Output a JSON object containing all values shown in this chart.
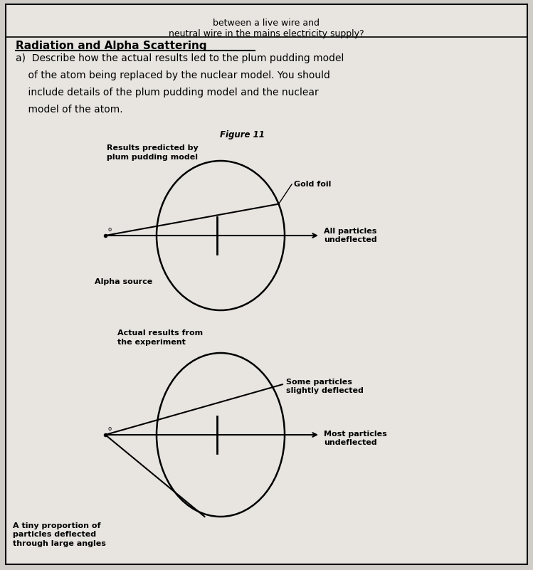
{
  "bg_color": "#d0ccc8",
  "page_bg": "#e8e5e1",
  "top_text": "between a live wire and\nneutral wire in the mains electricity supply?",
  "section_title": "Radiation and Alpha Scattering",
  "question_a": "a)  Describe how the actual results led to the plum pudding model",
  "question_b": "    of the atom being replaced by the nuclear model. You should",
  "question_c": "    include details of the plum pudding model and the nuclear",
  "question_d": "    model of the atom.",
  "figure_label": "Figure 11",
  "diagram1_title": "Results predicted by\nplum pudding model",
  "diagram1_label1": "Gold foil",
  "diagram1_label2": "All particles\nundeflected",
  "diagram1_label3": "Alpha source",
  "diagram2_title": "Actual results from\nthe experiment",
  "diagram2_label1": "Some particles\nslightly deflected",
  "diagram2_label2": "Most particles\nundeflected",
  "diagram2_label3": "A tiny proportion of\nparticles deflected\nthrough large angles"
}
